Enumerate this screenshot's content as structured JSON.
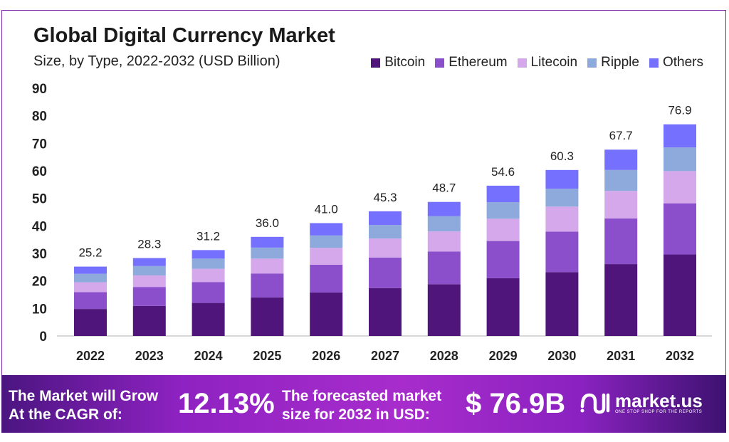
{
  "chart_data": {
    "type": "bar",
    "stacked": true,
    "title": "Global Digital Currency Market",
    "subtitle": "Size, by Type, 2022-2032 (USD Billion)",
    "categories": [
      "2022",
      "2023",
      "2024",
      "2025",
      "2026",
      "2027",
      "2028",
      "2029",
      "2030",
      "2031",
      "2032"
    ],
    "series": [
      {
        "name": "Bitcoin",
        "color": "#4f157a",
        "values": [
          9.8,
          10.9,
          12.0,
          14.0,
          15.8,
          17.4,
          18.8,
          21.0,
          23.2,
          26.1,
          29.6
        ]
      },
      {
        "name": "Ethereum",
        "color": "#8b4fcc",
        "values": [
          6.1,
          6.9,
          7.6,
          8.7,
          10.1,
          11.1,
          11.9,
          13.5,
          14.7,
          16.6,
          18.6
        ]
      },
      {
        "name": "Litecoin",
        "color": "#d4a8ea",
        "values": [
          3.6,
          4.2,
          4.8,
          5.4,
          6.1,
          6.9,
          7.3,
          8.1,
          9.1,
          10.0,
          11.7
        ]
      },
      {
        "name": "Ripple",
        "color": "#8ea9db",
        "values": [
          3.1,
          3.4,
          3.7,
          4.0,
          4.5,
          4.9,
          5.5,
          6.0,
          6.5,
          7.6,
          8.6
        ]
      },
      {
        "name": "Others",
        "color": "#7570fd",
        "values": [
          2.6,
          2.9,
          3.1,
          3.9,
          4.5,
          5.0,
          5.2,
          6.0,
          6.8,
          7.4,
          8.4
        ]
      }
    ],
    "totals": [
      "25.2",
      "28.3",
      "31.2",
      "36.0",
      "41.0",
      "45.3",
      "48.7",
      "54.6",
      "60.3",
      "67.7",
      "76.9"
    ],
    "yticks": [
      "0",
      "10",
      "20",
      "30",
      "40",
      "50",
      "60",
      "70",
      "80",
      "90"
    ],
    "ylim": [
      0,
      90
    ],
    "grid": false,
    "legend": "top-right"
  },
  "footer": {
    "cagr_label_1": "The Market will Grow",
    "cagr_label_2": "At the CAGR of:",
    "cagr_value": "12.13%",
    "forecast_label_1": "The forecasted market",
    "forecast_label_2": "size for 2032 in USD:",
    "forecast_value": "$ 76.9B",
    "brand": "market.us",
    "brand_tagline": "ONE STOP SHOP FOR THE REPORTS"
  }
}
